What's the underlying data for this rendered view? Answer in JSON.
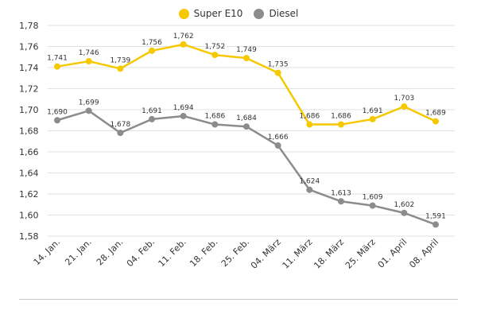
{
  "chart_data": {
    "type": "line",
    "categories": [
      "14. Jan.",
      "21. Jan.",
      "28. Jan.",
      "04. Feb.",
      "11. Feb.",
      "18. Feb.",
      "25. Feb.",
      "04. März",
      "11. März",
      "18. März",
      "25. März",
      "01. April",
      "08. April"
    ],
    "series": [
      {
        "name": "Super E10",
        "color": "#f5c800",
        "values": [
          1.741,
          1.746,
          1.739,
          1.756,
          1.762,
          1.752,
          1.749,
          1.735,
          1.686,
          1.686,
          1.691,
          1.703,
          1.689
        ],
        "labels": [
          "1,741",
          "1,746",
          "1,739",
          "1,756",
          "1,762",
          "1,752",
          "1,749",
          "1,735",
          "1,686",
          "1,686",
          "1,691",
          "1,703",
          "1,689"
        ]
      },
      {
        "name": "Diesel",
        "color": "#8c8c8c",
        "values": [
          1.69,
          1.699,
          1.678,
          1.691,
          1.694,
          1.686,
          1.684,
          1.666,
          1.624,
          1.613,
          1.609,
          1.602,
          1.591
        ],
        "labels": [
          "1,690",
          "1,699",
          "1,678",
          "1,691",
          "1,694",
          "1,686",
          "1,684",
          "1,666",
          "1,624",
          "1,613",
          "1,609",
          "1,602",
          "1,591"
        ]
      }
    ],
    "yticks": [
      1.58,
      1.6,
      1.62,
      1.64,
      1.66,
      1.68,
      1.7,
      1.72,
      1.74,
      1.76,
      1.78
    ],
    "ytick_labels": [
      "1,58",
      "1,60",
      "1,62",
      "1,64",
      "1,66",
      "1,68",
      "1,70",
      "1,72",
      "1,74",
      "1,76",
      "1,78"
    ],
    "ylim": [
      1.58,
      1.78
    ],
    "grid": true,
    "legend_position": "top-center",
    "title": "",
    "xlabel": "",
    "ylabel": ""
  }
}
